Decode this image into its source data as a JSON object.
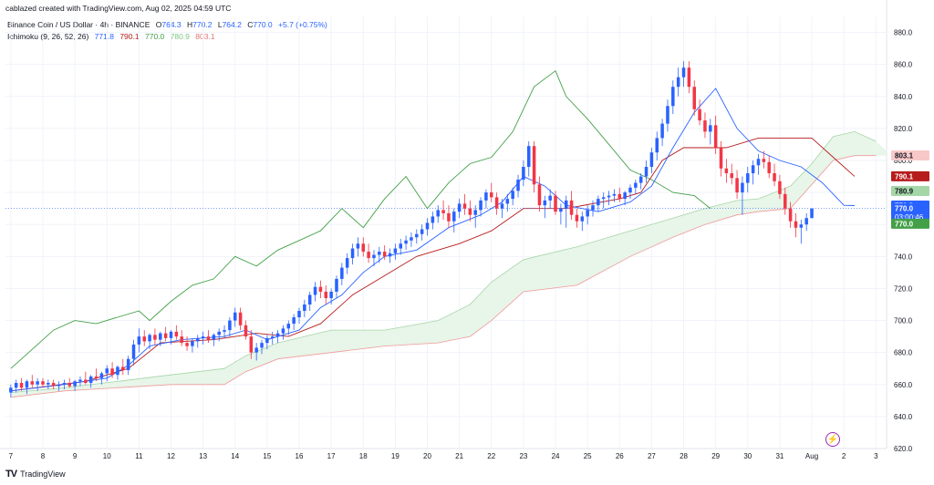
{
  "header": {
    "text": "cablazed created with TradingView.com, Aug 02, 2025 04:59 UTC"
  },
  "legend": {
    "symbol": "Binance Coin / US Dollar · 4h · BINANCE",
    "ohlc": {
      "o_label": "O",
      "o": "764.3",
      "h_label": "H",
      "h": "770.2",
      "l_label": "L",
      "l": "764.2",
      "c_label": "C",
      "c": "770.0",
      "change": "+5.7 (+0.75%)"
    },
    "indicator": "Ichimoku (9, 26, 52, 26)",
    "ind_values": [
      "771.8",
      "790.1",
      "770.0",
      "780.9",
      "803.1"
    ]
  },
  "footer": {
    "brand": "TradingView",
    "logo": "TV"
  },
  "colors": {
    "up": "#2962ff",
    "down": "#f23645",
    "conversion": "#2962ff",
    "base": "#b71c1c",
    "lagging": "#43a047",
    "spanA": "#a5d6a7",
    "spanB": "#ef9a9a",
    "cloud_bull": "#e8f5e9",
    "cloud_bear": "#fdecea",
    "grid": "#f0f3fa"
  },
  "chart_data": {
    "type": "candlestick",
    "timeframe": "4h",
    "ylim": [
      620,
      890
    ],
    "y_ticks": [
      620,
      640,
      660,
      680,
      700,
      720,
      740,
      760,
      780,
      800,
      820,
      840,
      860,
      880
    ],
    "y_tick_labels": [
      "620.0",
      "640.0",
      "660.0",
      "680.0",
      "700.0",
      "720.0",
      "740.0",
      "760.0",
      "780.0",
      "800.0",
      "820.0",
      "840.0",
      "860.0",
      "880.0"
    ],
    "x_ticks": [
      {
        "label": "7",
        "i": 0
      },
      {
        "label": "8",
        "i": 6
      },
      {
        "label": "9",
        "i": 12
      },
      {
        "label": "10",
        "i": 18
      },
      {
        "label": "11",
        "i": 24
      },
      {
        "label": "12",
        "i": 30
      },
      {
        "label": "13",
        "i": 36
      },
      {
        "label": "14",
        "i": 42
      },
      {
        "label": "15",
        "i": 48
      },
      {
        "label": "16",
        "i": 54
      },
      {
        "label": "17",
        "i": 60
      },
      {
        "label": "18",
        "i": 66
      },
      {
        "label": "19",
        "i": 72
      },
      {
        "label": "20",
        "i": 78
      },
      {
        "label": "21",
        "i": 84
      },
      {
        "label": "22",
        "i": 90
      },
      {
        "label": "23",
        "i": 96
      },
      {
        "label": "24",
        "i": 102
      },
      {
        "label": "25",
        "i": 108
      },
      {
        "label": "26",
        "i": 114
      },
      {
        "label": "27",
        "i": 120
      },
      {
        "label": "28",
        "i": 126
      },
      {
        "label": "29",
        "i": 132
      },
      {
        "label": "30",
        "i": 138
      },
      {
        "label": "31",
        "i": 144
      },
      {
        "label": "Aug",
        "i": 150
      },
      {
        "label": "2",
        "i": 156
      },
      {
        "label": "3",
        "i": 162
      }
    ],
    "x_domain": [
      -1,
      164
    ],
    "last_price_line": 770.0,
    "candles": [
      [
        655,
        660,
        652,
        658
      ],
      [
        658,
        663,
        655,
        661
      ],
      [
        661,
        664,
        656,
        658
      ],
      [
        658,
        663,
        654,
        662
      ],
      [
        662,
        666,
        658,
        660
      ],
      [
        660,
        664,
        656,
        662
      ],
      [
        662,
        664,
        658,
        660
      ],
      [
        660,
        663,
        657,
        661
      ],
      [
        661,
        663,
        657,
        659
      ],
      [
        659,
        662,
        656,
        660
      ],
      [
        660,
        663,
        657,
        661
      ],
      [
        661,
        664,
        658,
        659
      ],
      [
        659,
        663,
        656,
        662
      ],
      [
        662,
        665,
        659,
        663
      ],
      [
        663,
        668,
        660,
        661
      ],
      [
        661,
        666,
        658,
        665
      ],
      [
        665,
        670,
        662,
        664
      ],
      [
        664,
        668,
        660,
        667
      ],
      [
        667,
        672,
        662,
        670
      ],
      [
        670,
        674,
        664,
        666
      ],
      [
        666,
        672,
        663,
        671
      ],
      [
        671,
        676,
        666,
        669
      ],
      [
        669,
        678,
        666,
        676
      ],
      [
        676,
        688,
        672,
        685
      ],
      [
        685,
        695,
        680,
        690
      ],
      [
        690,
        694,
        684,
        687
      ],
      [
        687,
        692,
        682,
        691
      ],
      [
        691,
        695,
        685,
        688
      ],
      [
        688,
        693,
        684,
        692
      ],
      [
        692,
        696,
        687,
        689
      ],
      [
        689,
        694,
        685,
        693
      ],
      [
        693,
        697,
        688,
        690
      ],
      [
        690,
        694,
        684,
        686
      ],
      [
        686,
        690,
        681,
        684
      ],
      [
        684,
        689,
        680,
        687
      ],
      [
        687,
        691,
        683,
        689
      ],
      [
        689,
        693,
        685,
        690
      ],
      [
        690,
        694,
        686,
        688
      ],
      [
        688,
        692,
        684,
        691
      ],
      [
        691,
        695,
        687,
        693
      ],
      [
        693,
        697,
        689,
        694
      ],
      [
        694,
        702,
        690,
        700
      ],
      [
        700,
        708,
        696,
        705
      ],
      [
        705,
        708,
        694,
        697
      ],
      [
        697,
        700,
        688,
        690
      ],
      [
        690,
        694,
        676,
        680
      ],
      [
        680,
        686,
        675,
        683
      ],
      [
        683,
        688,
        679,
        686
      ],
      [
        686,
        691,
        682,
        689
      ],
      [
        689,
        693,
        685,
        690
      ],
      [
        690,
        694,
        686,
        692
      ],
      [
        692,
        697,
        688,
        695
      ],
      [
        695,
        700,
        691,
        698
      ],
      [
        698,
        704,
        694,
        702
      ],
      [
        702,
        708,
        698,
        706
      ],
      [
        706,
        713,
        702,
        710
      ],
      [
        710,
        718,
        706,
        716
      ],
      [
        716,
        724,
        712,
        721
      ],
      [
        721,
        725,
        714,
        718
      ],
      [
        718,
        722,
        710,
        714
      ],
      [
        714,
        720,
        710,
        718
      ],
      [
        718,
        728,
        714,
        726
      ],
      [
        726,
        736,
        722,
        733
      ],
      [
        733,
        742,
        729,
        739
      ],
      [
        739,
        748,
        735,
        745
      ],
      [
        745,
        752,
        740,
        748
      ],
      [
        748,
        752,
        740,
        743
      ],
      [
        743,
        748,
        736,
        739
      ],
      [
        739,
        744,
        734,
        741
      ],
      [
        741,
        746,
        736,
        743
      ],
      [
        743,
        747,
        738,
        740
      ],
      [
        740,
        745,
        736,
        742
      ],
      [
        742,
        748,
        738,
        745
      ],
      [
        745,
        751,
        741,
        748
      ],
      [
        748,
        753,
        744,
        750
      ],
      [
        750,
        755,
        746,
        752
      ],
      [
        752,
        757,
        748,
        754
      ],
      [
        754,
        760,
        750,
        757
      ],
      [
        757,
        764,
        753,
        761
      ],
      [
        761,
        768,
        757,
        765
      ],
      [
        765,
        772,
        761,
        769
      ],
      [
        769,
        775,
        763,
        767
      ],
      [
        767,
        772,
        758,
        762
      ],
      [
        762,
        770,
        755,
        768
      ],
      [
        768,
        776,
        764,
        773
      ],
      [
        773,
        779,
        766,
        770
      ],
      [
        770,
        775,
        762,
        766
      ],
      [
        766,
        772,
        758,
        769
      ],
      [
        769,
        777,
        765,
        775
      ],
      [
        775,
        782,
        770,
        780
      ],
      [
        780,
        786,
        774,
        777
      ],
      [
        777,
        780,
        766,
        770
      ],
      [
        770,
        776,
        764,
        773
      ],
      [
        773,
        779,
        768,
        776
      ],
      [
        776,
        783,
        772,
        781
      ],
      [
        781,
        791,
        777,
        788
      ],
      [
        788,
        800,
        784,
        796
      ],
      [
        796,
        812,
        790,
        809
      ],
      [
        809,
        812,
        780,
        785
      ],
      [
        785,
        790,
        768,
        772
      ],
      [
        772,
        778,
        764,
        775
      ],
      [
        775,
        782,
        770,
        778
      ],
      [
        778,
        781,
        766,
        768
      ],
      [
        768,
        773,
        760,
        770
      ],
      [
        770,
        778,
        758,
        775
      ],
      [
        775,
        781,
        763,
        766
      ],
      [
        766,
        770,
        758,
        762
      ],
      [
        762,
        768,
        756,
        765
      ],
      [
        765,
        772,
        760,
        769
      ],
      [
        769,
        775,
        765,
        772
      ],
      [
        772,
        778,
        768,
        776
      ],
      [
        776,
        780,
        770,
        777
      ],
      [
        777,
        781,
        772,
        778
      ],
      [
        778,
        782,
        774,
        779
      ],
      [
        779,
        783,
        774,
        776
      ],
      [
        776,
        781,
        772,
        780
      ],
      [
        780,
        785,
        776,
        783
      ],
      [
        783,
        788,
        779,
        786
      ],
      [
        786,
        792,
        782,
        790
      ],
      [
        790,
        800,
        786,
        796
      ],
      [
        796,
        808,
        792,
        805
      ],
      [
        805,
        818,
        800,
        814
      ],
      [
        814,
        826,
        809,
        823
      ],
      [
        823,
        838,
        818,
        834
      ],
      [
        834,
        850,
        829,
        846
      ],
      [
        846,
        858,
        840,
        852
      ],
      [
        852,
        862,
        846,
        858
      ],
      [
        858,
        862,
        842,
        846
      ],
      [
        846,
        850,
        828,
        832
      ],
      [
        832,
        838,
        822,
        825
      ],
      [
        825,
        830,
        814,
        818
      ],
      [
        818,
        826,
        810,
        822
      ],
      [
        822,
        828,
        804,
        808
      ],
      [
        808,
        812,
        790,
        795
      ],
      [
        795,
        801,
        786,
        792
      ],
      [
        792,
        798,
        785,
        789
      ],
      [
        789,
        794,
        776,
        780
      ],
      [
        780,
        790,
        766,
        786
      ],
      [
        786,
        796,
        780,
        792
      ],
      [
        792,
        800,
        785,
        797
      ],
      [
        797,
        804,
        791,
        801
      ],
      [
        801,
        806,
        795,
        799
      ],
      [
        799,
        803,
        789,
        792
      ],
      [
        792,
        798,
        784,
        787
      ],
      [
        787,
        791,
        776,
        779
      ],
      [
        779,
        783,
        766,
        770
      ],
      [
        770,
        774,
        758,
        762
      ],
      [
        762,
        767,
        752,
        758
      ],
      [
        758,
        763,
        748,
        760
      ],
      [
        760,
        767,
        756,
        764
      ],
      [
        764,
        770,
        764,
        770
      ]
    ],
    "series": [
      {
        "name": "Conversion Line",
        "values": [
          "i0:656",
          "i10:660",
          "i18:664",
          "i22:672",
          "i26:684",
          "i32:688",
          "i40:690",
          "i44:694",
          "i48:688",
          "i54:694",
          "i58:708",
          "i62:716",
          "i66:730",
          "i70:740",
          "i76:744",
          "i82:758",
          "i88:766",
          "i92:774",
          "i96:790",
          "i100:784",
          "i104:772",
          "i110:768",
          "i116:774",
          "i120:784",
          "i124:808",
          "i128:830",
          "i132:845",
          "i136:820",
          "i140:806",
          "i144:800",
          "i148:796",
          "i152:786",
          "i156:772",
          "i158:771.8"
        ]
      },
      {
        "name": "Base Line",
        "values": [
          "i0:656",
          "i14:662",
          "i22:670",
          "i28:686",
          "i38:688",
          "i46:692",
          "i52:690",
          "i58:698",
          "i64:716",
          "i70:728",
          "i76:740",
          "i84:748",
          "i90:756",
          "i96:770",
          "i104:770",
          "i114:776",
          "i118:780",
          "i122:800",
          "i126:808",
          "i134:808",
          "i140:814",
          "i150:814",
          "i154:802",
          "i158:790.1"
        ]
      },
      {
        "name": "Lagging Span",
        "values": [
          "i0:670",
          "i4:682",
          "i8:694",
          "i12:700",
          "i16:698",
          "i20:702",
          "i24:706",
          "i26:700",
          "i30:712",
          "i34:722",
          "i38:726",
          "i42:740",
          "i46:734",
          "i50:744",
          "i54:750",
          "i58:756",
          "i62:770",
          "i66:758",
          "i70:776",
          "i74:790",
          "i78:770",
          "i82:786",
          "i86:798",
          "i90:802",
          "i94:818",
          "i98:846",
          "i102:856",
          "i104:840",
          "i108:826",
          "i112:810",
          "i116:794",
          "i120:788",
          "i124:780",
          "i128:778",
          "i131:770"
        ]
      },
      {
        "name": "Leading Span A",
        "values": [
          "i0:655",
          "i10:658",
          "i20:662",
          "i30:666",
          "i40:670",
          "i44:678",
          "i50:686",
          "i60:694",
          "i70:694",
          "i80:700",
          "i86:710",
          "i90:724",
          "i96:738",
          "i106:746",
          "i116:756",
          "i124:764",
          "i130:770",
          "i136:775",
          "i140:776",
          "i146:784",
          "i150:798",
          "i154:815",
          "i158:818",
          "i162:812",
          "i166:800"
        ]
      },
      {
        "name": "Leading Span B",
        "values": [
          "i0:652",
          "i10:656",
          "i20:658",
          "i30:660",
          "i40:660",
          "i44:668",
          "i50:676",
          "i60:680",
          "i70:684",
          "i80:686",
          "i86:690",
          "i90:700",
          "i96:718",
          "i106:722",
          "i116:740",
          "i124:752",
          "i130:760",
          "i136:766",
          "i140:768",
          "i146:770",
          "i150:785",
          "i154:800",
          "i158:803",
          "i162:803",
          "i166:803"
        ]
      }
    ],
    "price_tags": [
      {
        "value": "803.1",
        "price": 803.1,
        "bg": "#f8c8c8",
        "fg": "#131722"
      },
      {
        "value": "790.1",
        "price": 790.1,
        "bg": "#b71c1c",
        "fg": "#ffffff"
      },
      {
        "value": "780.9",
        "price": 780.9,
        "bg": "#a5d6a7",
        "fg": "#131722"
      },
      {
        "value": "771.8",
        "price": 771.8,
        "bg": "#2962ff",
        "fg": "#ffffff"
      },
      {
        "value": "770.0",
        "sub": "03:00:46",
        "price": 770.0,
        "bg": "#2962ff",
        "fg": "#ffffff"
      },
      {
        "value": "770.0",
        "price": 760.5,
        "bg": "#43a047",
        "fg": "#ffffff"
      }
    ]
  }
}
